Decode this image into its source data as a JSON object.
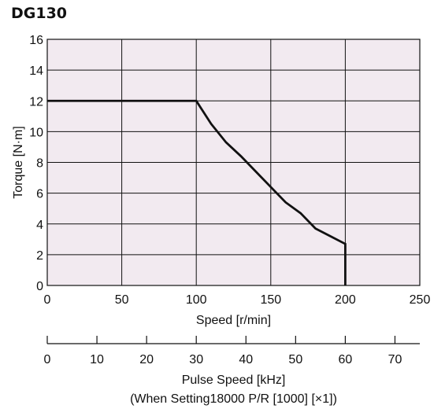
{
  "chart_data": {
    "type": "line",
    "title": "DG130",
    "xlabel": "Speed [r/min]",
    "ylabel": "Torque [N·m]",
    "xlim": [
      0,
      250
    ],
    "ylim": [
      0,
      16
    ],
    "xticks": [
      0,
      50,
      100,
      150,
      200,
      250
    ],
    "yticks": [
      0,
      2,
      4,
      6,
      8,
      10,
      12,
      14,
      16
    ],
    "grid": true,
    "series": [
      {
        "x": [
          0,
          100,
          110,
          120,
          130,
          140,
          150,
          160,
          170,
          180,
          190,
          200,
          200
        ],
        "y": [
          12,
          12,
          10.5,
          9.3,
          8.4,
          7.4,
          6.4,
          5.4,
          4.7,
          3.7,
          3.2,
          2.7,
          0
        ]
      }
    ],
    "secondary_axis": {
      "label": "Pulse Speed [kHz]",
      "note": "(When Setting18000 P/R [1000] [×1])",
      "ticks": [
        0,
        10,
        20,
        30,
        40,
        50,
        60,
        70
      ],
      "range": [
        0,
        75
      ]
    },
    "colors": {
      "plot_background": "#f2eaf0",
      "line": "#111111",
      "grid": "#111111"
    }
  }
}
